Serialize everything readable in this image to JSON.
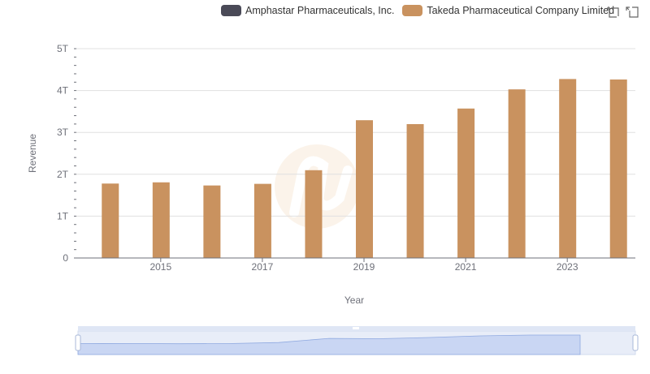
{
  "legend": [
    {
      "name": "Amphastar Pharmaceuticals, Inc.",
      "color": "#4a4a57"
    },
    {
      "name": "Takeda Pharmaceutical Company Limited",
      "color": "#c9925f"
    }
  ],
  "toolbox": {
    "zoom_icon": "data-zoom-icon",
    "restore_icon": "restore-icon"
  },
  "chart_data": {
    "type": "bar",
    "xlabel": "Year",
    "ylabel": "Revenue",
    "ylim": [
      0,
      5000000000000
    ],
    "y_ticks": [
      "0",
      "1T",
      "2T",
      "3T",
      "4T",
      "5T"
    ],
    "x_tick_labels": [
      "2015",
      "2017",
      "2019",
      "2021",
      "2023"
    ],
    "categories": [
      "2014",
      "2015",
      "2016",
      "2017",
      "2018",
      "2019",
      "2020",
      "2021",
      "2022",
      "2023",
      "2024"
    ],
    "series": [
      {
        "name": "Amphastar Pharmaceuticals, Inc.",
        "color": "#4a4a57",
        "values": [
          210000000,
          250000000,
          255000000,
          240000000,
          295000000,
          322000000,
          349000000,
          438000000,
          499000000,
          644000000,
          700000000
        ]
      },
      {
        "name": "Takeda Pharmaceutical Company Limited",
        "color": "#c9925f",
        "values": [
          1778000000000,
          1807000000000,
          1732000000000,
          1771000000000,
          2097000000000,
          3291000000000,
          3198000000000,
          3570000000000,
          4028000000000,
          4275000000000,
          4264000000000
        ]
      }
    ],
    "grid": true,
    "legend_position": "top"
  }
}
